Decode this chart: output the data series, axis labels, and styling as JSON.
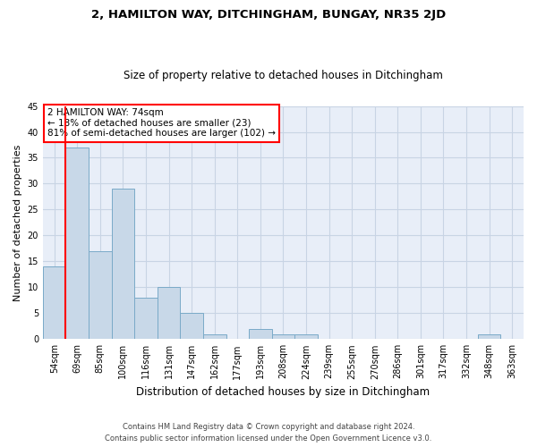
{
  "title1": "2, HAMILTON WAY, DITCHINGHAM, BUNGAY, NR35 2JD",
  "title2": "Size of property relative to detached houses in Ditchingham",
  "xlabel": "Distribution of detached houses by size in Ditchingham",
  "ylabel": "Number of detached properties",
  "footer1": "Contains HM Land Registry data © Crown copyright and database right 2024.",
  "footer2": "Contains public sector information licensed under the Open Government Licence v3.0.",
  "categories": [
    "54sqm",
    "69sqm",
    "85sqm",
    "100sqm",
    "116sqm",
    "131sqm",
    "147sqm",
    "162sqm",
    "177sqm",
    "193sqm",
    "208sqm",
    "224sqm",
    "239sqm",
    "255sqm",
    "270sqm",
    "286sqm",
    "301sqm",
    "317sqm",
    "332sqm",
    "348sqm",
    "363sqm"
  ],
  "values": [
    14,
    37,
    17,
    29,
    8,
    10,
    5,
    1,
    0,
    2,
    1,
    1,
    0,
    0,
    0,
    0,
    0,
    0,
    0,
    1,
    0
  ],
  "bar_color": "#c8d8e8",
  "bar_edge_color": "#7aaac8",
  "grid_color": "#c8d4e4",
  "background_color": "#e8eef8",
  "red_line_x": 0.5,
  "annotation_text": "2 HAMILTON WAY: 74sqm\n← 18% of detached houses are smaller (23)\n81% of semi-detached houses are larger (102) →",
  "annotation_box_color": "white",
  "annotation_box_edge": "red",
  "ylim": [
    0,
    45
  ],
  "yticks": [
    0,
    5,
    10,
    15,
    20,
    25,
    30,
    35,
    40,
    45
  ]
}
